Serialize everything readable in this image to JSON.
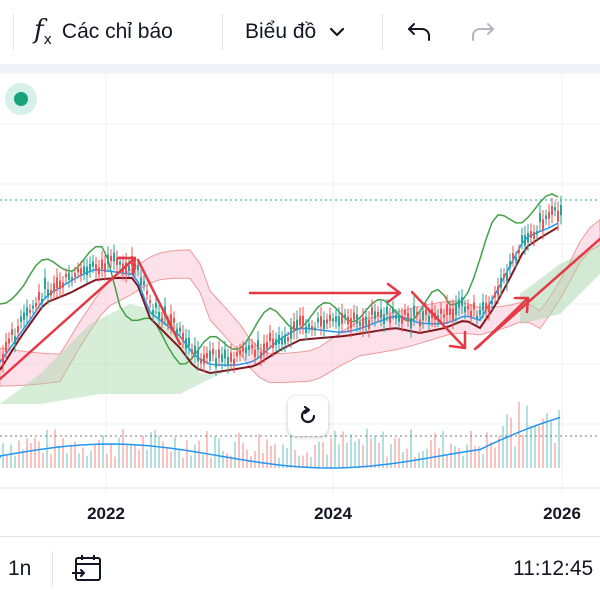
{
  "toolbar": {
    "indicators_label": "Các chỉ báo",
    "chart_type_label": "Biểu đồ",
    "icons": [
      "fx-icon",
      "chevron-down-icon",
      "undo-icon",
      "redo-icon"
    ]
  },
  "colors": {
    "accent": "#2962ff",
    "status_dot": "#1aa37a",
    "candle_up": "#26a69a",
    "candle_down": "#ef5350",
    "tenkan": "#2196f3",
    "kijun": "#801922",
    "chikou": "#43a047",
    "kumo_bull": "#a5d6a7",
    "kumo_bear": "#f8bbd0",
    "trend_arrow": "#e53946",
    "volume_ma": "#2196f3"
  },
  "chart_data": {
    "type": "candlestick",
    "x_tick_labels": [
      "2022",
      "2024",
      "2026"
    ],
    "overlays": [
      "ichimoku-cloud",
      "tenkan-sen",
      "kijun-sen",
      "chikou-span",
      "volume",
      "volume-moving-average"
    ],
    "annotations": [
      "uptrend-arrow",
      "peak-reversal-arrow",
      "sideways-arrow",
      "drop-arrow",
      "breakout-arrow",
      "rising-trendline"
    ],
    "volume_pane": true,
    "grid": true
  },
  "bottom_bar": {
    "range_label": "1n",
    "time": "11:12:45",
    "icons": [
      "calendar-goto-icon"
    ]
  }
}
